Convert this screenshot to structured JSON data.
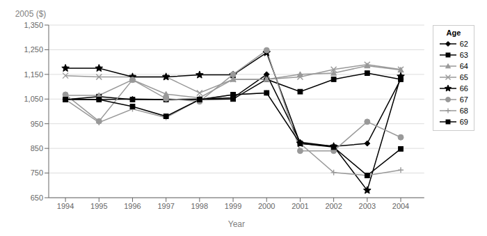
{
  "chart_data": {
    "type": "line",
    "x_label": "Year",
    "y_label": "2005 ($)",
    "legend_title": "Age",
    "x": [
      1994,
      1995,
      1996,
      1997,
      1998,
      1999,
      2000,
      2001,
      2002,
      2003,
      2004
    ],
    "xlim": [
      1993.5,
      2004.7
    ],
    "xticks": [
      1994,
      1995,
      1996,
      1997,
      1998,
      1999,
      2000,
      2001,
      2002,
      2003,
      2004
    ],
    "ylim": [
      650,
      1350
    ],
    "yticks": [
      650,
      750,
      850,
      950,
      {
        "value": 1050,
        "label": "1,050"
      },
      {
        "value": 1150,
        "label": "1,150"
      },
      {
        "value": 1250,
        "label": "1,250"
      },
      {
        "value": 1350,
        "label": "1,350"
      }
    ],
    "grid": "y",
    "legend": "upper right",
    "series": [
      {
        "name": "62",
        "color": "#000000",
        "marker": "diamond",
        "line_style": "solid",
        "values": [
          1050,
          1048,
          1050,
          1048,
          1050,
          1055,
          1150,
          875,
          858,
          870,
          1130
        ]
      },
      {
        "name": "63",
        "color": "#000000",
        "marker": "square",
        "line_style": "solid",
        "values": [
          1048,
          1060,
          1048,
          1048,
          1048,
          1050,
          1130,
          1080,
          1130,
          1155,
          1130
        ]
      },
      {
        "name": "64",
        "color": "#999999",
        "marker": "triangle",
        "line_style": "solid",
        "values": [
          1065,
          1065,
          1128,
          1070,
          1055,
          1130,
          1130,
          1150,
          1155,
          1185,
          1168
        ]
      },
      {
        "name": "65",
        "color": "#999999",
        "marker": "x",
        "line_style": "solid",
        "values": [
          1145,
          1140,
          1140,
          1140,
          1075,
          1130,
          1130,
          1140,
          1170,
          1190,
          1170
        ]
      },
      {
        "name": "66",
        "color": "#000000",
        "marker": "star",
        "line_style": "solid",
        "values": [
          1175,
          1175,
          1140,
          1140,
          1148,
          1148,
          1238,
          870,
          858,
          680,
          1142
        ]
      },
      {
        "name": "67",
        "color": "#999999",
        "marker": "circle",
        "line_style": "solid",
        "values": [
          1068,
          960,
          1128,
          1052,
          1040,
          1150,
          1248,
          840,
          840,
          958,
          895
        ]
      },
      {
        "name": "68",
        "color": "#999999",
        "marker": "plus",
        "line_style": "solid",
        "values": [
          1048,
          955,
          1010,
          975,
          1048,
          1068,
          1075,
          870,
          752,
          740,
          762
        ]
      },
      {
        "name": "69",
        "color": "#000000",
        "marker": "square",
        "line_style": "solid",
        "values": [
          1048,
          1048,
          1020,
          980,
          1048,
          1068,
          1075,
          870,
          855,
          740,
          848
        ]
      }
    ]
  }
}
